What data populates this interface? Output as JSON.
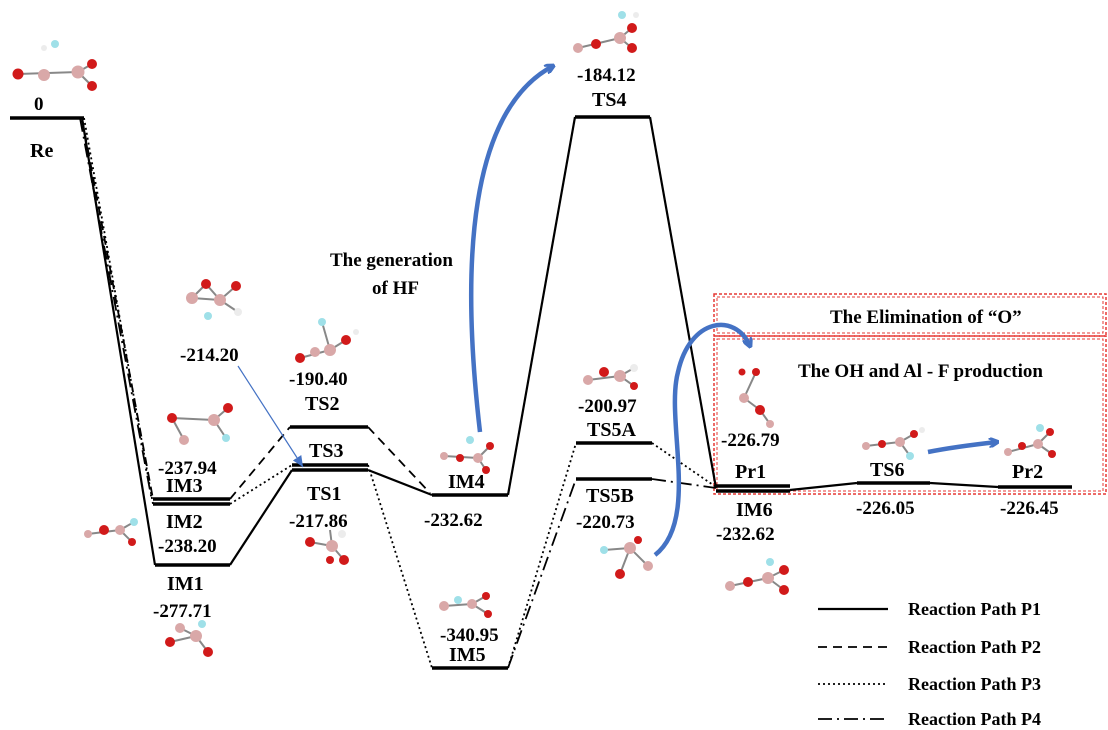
{
  "states": {
    "re": {
      "label": "Re",
      "energy": "0"
    },
    "im1": {
      "label": "IM1",
      "energy": "-277.71"
    },
    "im2": {
      "label": "IM2",
      "energy": "-238.20"
    },
    "im3": {
      "label": "IM3",
      "energy": "-237.94"
    },
    "ts1": {
      "label": "TS1",
      "energy": "-217.86"
    },
    "ts2": {
      "label": "TS2",
      "energy": "-190.40"
    },
    "ts3": {
      "label": "TS3",
      "energy": "-214.20"
    },
    "im4": {
      "label": "IM4",
      "energy": "-232.62"
    },
    "ts4": {
      "label": "TS4",
      "energy": "-184.12"
    },
    "im5": {
      "label": "IM5",
      "energy": "-340.95"
    },
    "ts5a": {
      "label": "TS5A",
      "energy": "-200.97"
    },
    "ts5b": {
      "label": "TS5B",
      "energy": "-220.73"
    },
    "im6": {
      "label": "IM6",
      "energy": "-232.62"
    },
    "pr1": {
      "label": "Pr1",
      "energy": "-226.79"
    },
    "ts6": {
      "label": "TS6",
      "energy": "-226.05"
    },
    "pr2": {
      "label": "Pr2",
      "energy": "-226.45"
    }
  },
  "annotations": {
    "hf_line1": "The generation",
    "hf_line2": "of HF",
    "elimination": "The Elimination of “O”",
    "oh_production": "The OH and Al - F production"
  },
  "legend": [
    {
      "label": "Reaction Path P1",
      "style": "solid"
    },
    {
      "label": "Reaction Path P2",
      "style": "dashed"
    },
    {
      "label": "Reaction Path P3",
      "style": "dotted"
    },
    {
      "label": "Reaction Path P4",
      "style": "dash-dot"
    }
  ],
  "colors": {
    "oxygen": "#d11a1a",
    "aluminum": "#d9a8a8",
    "fluorine": "#9fe0e8",
    "hydrogen": "#ececec",
    "arrow": "#4472c4",
    "highlight_box": "#e53935"
  }
}
